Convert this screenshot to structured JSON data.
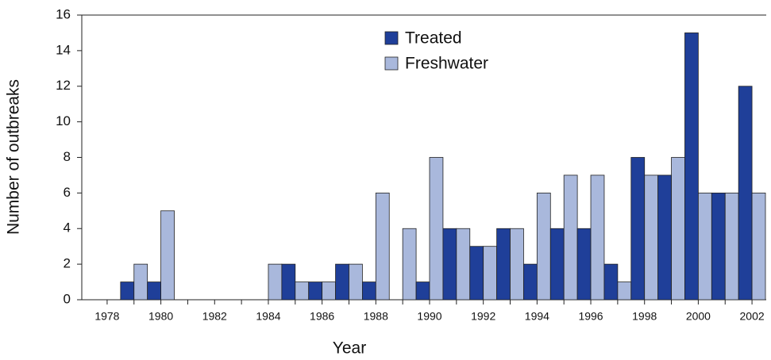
{
  "chart_data": {
    "type": "bar",
    "x_label": "Year",
    "y_label": "Number of outbreaks",
    "categories": [
      "1978",
      null,
      "1980",
      null,
      "1982",
      null,
      "1984",
      null,
      "1986",
      null,
      "1988",
      null,
      "1990",
      null,
      "1992",
      null,
      "1994",
      null,
      "1996",
      null,
      "1998",
      null,
      "2000",
      null,
      "2002"
    ],
    "series": [
      {
        "name": "Treated",
        "color": "#1f3f99",
        "values": [
          0,
          1,
          1,
          0,
          0,
          0,
          0,
          2,
          1,
          2,
          1,
          0,
          1,
          4,
          3,
          4,
          2,
          4,
          4,
          2,
          8,
          7,
          15,
          6,
          12
        ]
      },
      {
        "name": "Freshwater",
        "color": "#a9b8dc",
        "values": [
          0,
          2,
          5,
          0,
          0,
          0,
          2,
          1,
          1,
          2,
          6,
          4,
          8,
          4,
          3,
          4,
          6,
          7,
          7,
          1,
          7,
          8,
          6,
          6,
          6
        ]
      }
    ],
    "ylim": [
      0,
      16
    ],
    "yticks": [
      0,
      2,
      4,
      6,
      8,
      10,
      12,
      14,
      16
    ],
    "legend": "top-center"
  }
}
